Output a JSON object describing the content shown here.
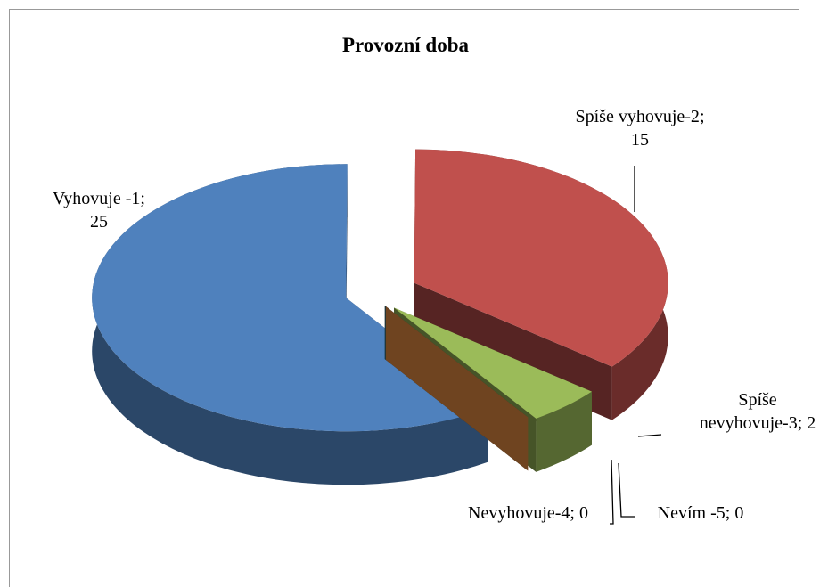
{
  "chart_data": {
    "type": "pie",
    "title": "Provozní doba",
    "categories": [
      "Vyhovuje -1",
      "Spíše vyhovuje-2",
      "Spíše nevyhovuje-3",
      "Nevyhovuje-4",
      "Nevím -5"
    ],
    "values": [
      25,
      15,
      2,
      0,
      0
    ],
    "label_separator": "; ",
    "colors": [
      "#4f81bd",
      "#c0504d",
      "#9bbb59",
      "#2c6e80",
      "#f79646"
    ],
    "three_d": true,
    "exploded": true
  }
}
